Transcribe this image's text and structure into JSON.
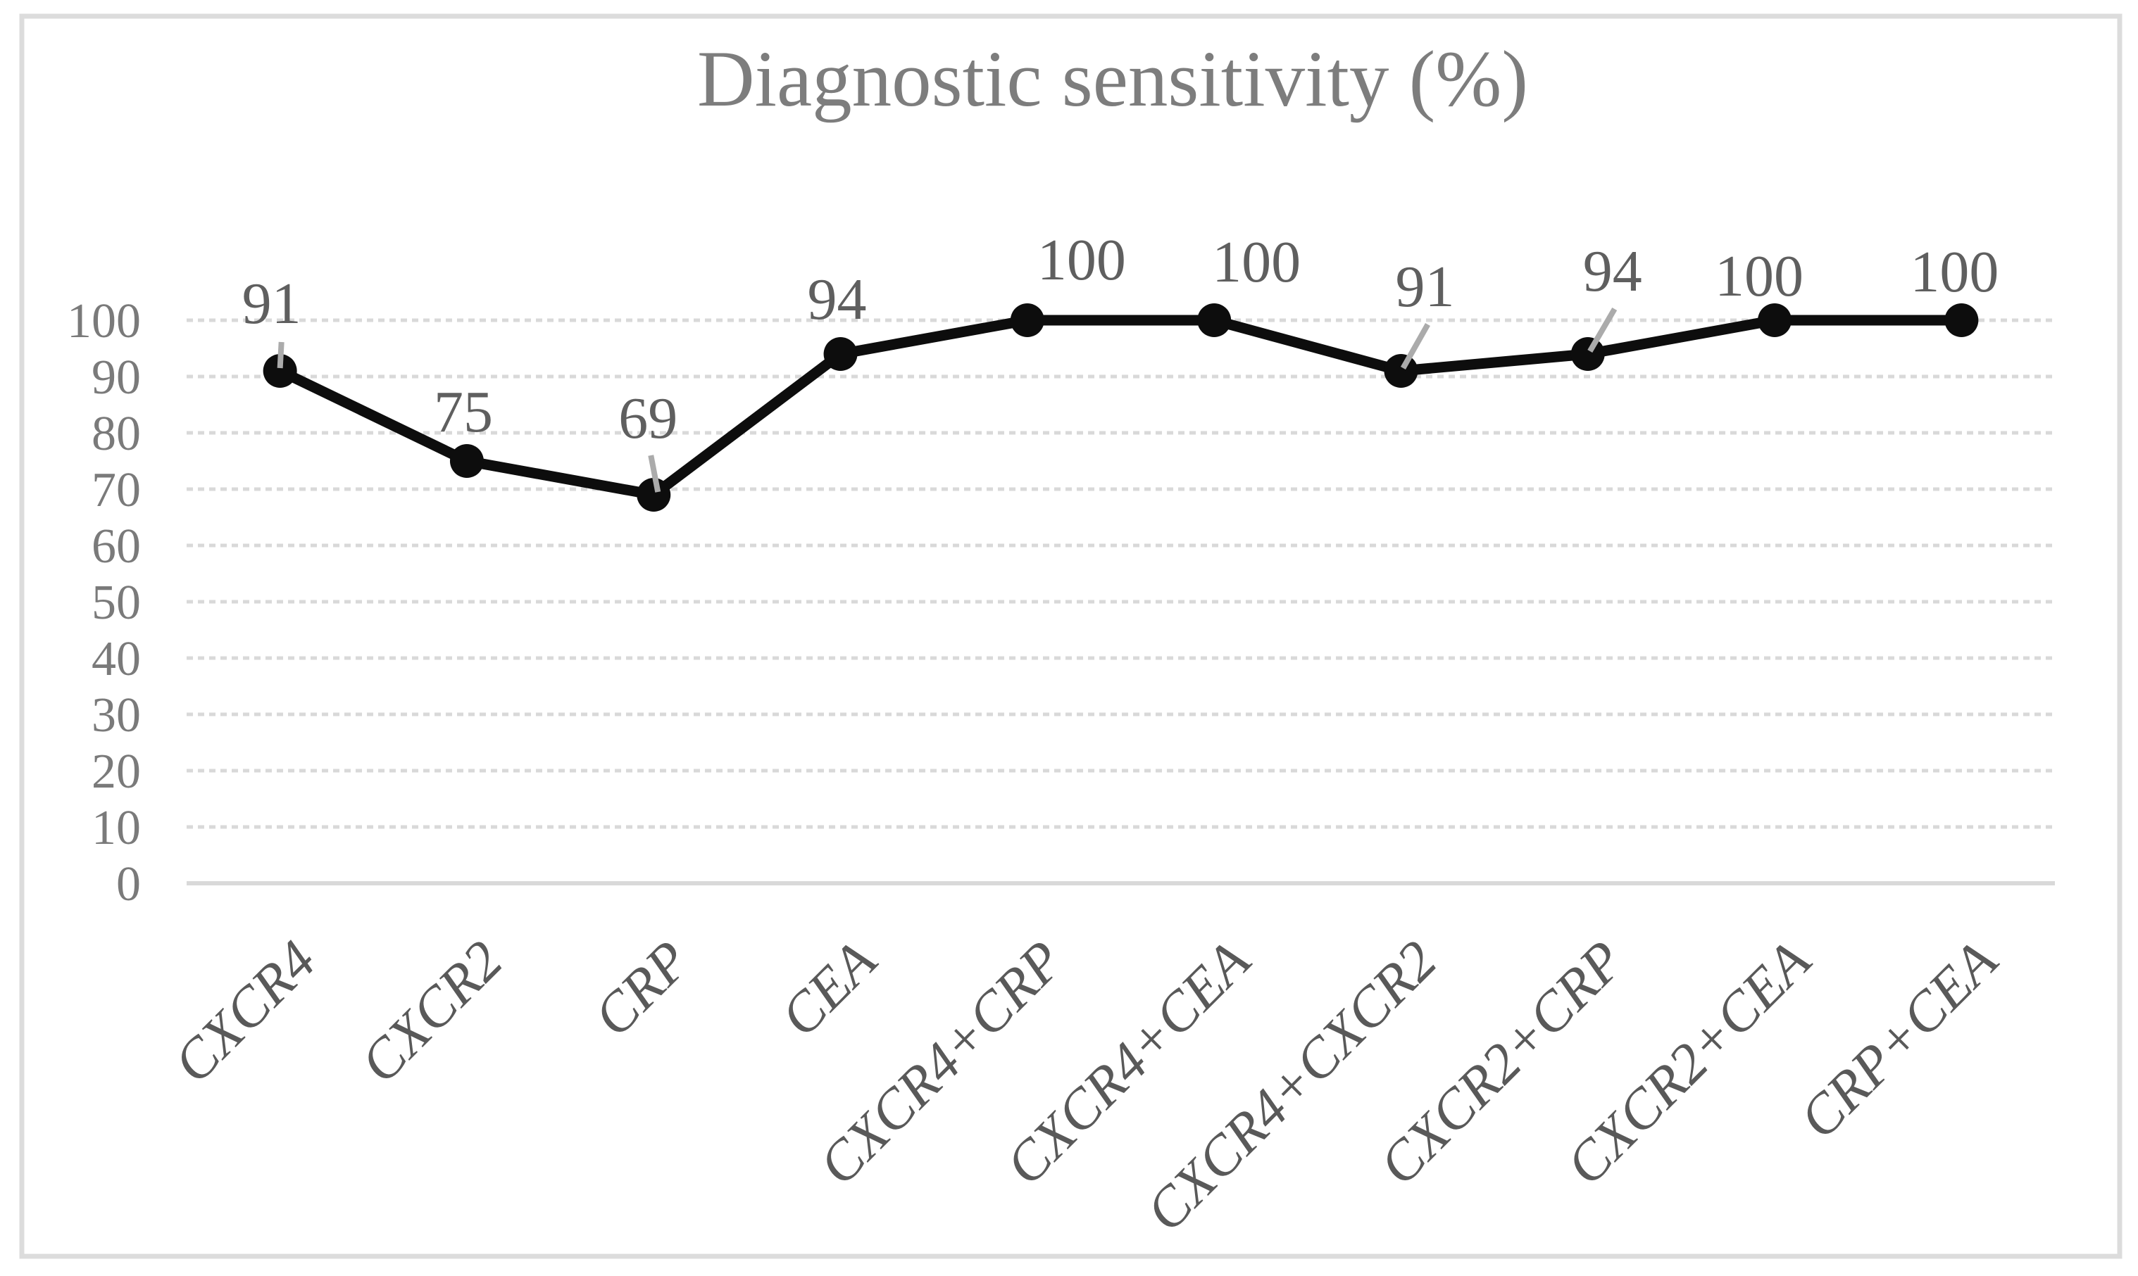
{
  "figure": {
    "title": "Diagnostic sensitivity (%)"
  },
  "colors": {
    "line": "#0d0d0d",
    "marker": "#0d0d0d",
    "gridline": "#d9d9d9",
    "axis_baseline": "#d9d9d9",
    "figure_border": "#dcdcdc",
    "title_text": "#7d7d7d",
    "tick_text": "#7a7a7a",
    "category_text": "#595959",
    "data_label_text": "#5f5f5f",
    "leader_line": "#ababab"
  },
  "chart_data": {
    "type": "line",
    "title": "Diagnostic sensitivity (%)",
    "categories": [
      "CXCR4",
      "CXCR2",
      "CRP",
      "CEA",
      "CXCR4+CRP",
      "CXCR4+CEA",
      "CXCR4+CXCR2",
      "CXCR2+CRP",
      "CXCR2+CEA",
      "CRP+CEA"
    ],
    "values": [
      91,
      75,
      69,
      94,
      100,
      100,
      91,
      94,
      100,
      100
    ],
    "series": [
      {
        "name": "Diagnostic sensitivity (%)",
        "values": [
          91,
          75,
          69,
          94,
          100,
          100,
          91,
          94,
          100,
          100
        ]
      }
    ],
    "data_labels": [
      "91",
      "75",
      "69",
      "94",
      "100",
      "100",
      "91",
      "94",
      "100",
      "100"
    ],
    "xlabel": "",
    "ylabel": "",
    "ylim": [
      0,
      100
    ],
    "y_ticks": [
      0,
      10,
      20,
      30,
      40,
      50,
      60,
      70,
      80,
      90,
      100
    ],
    "grid": "horizontal dashed",
    "legend_position": "none",
    "marker_style": "filled-circle",
    "x_label_rotation_deg": -45
  }
}
